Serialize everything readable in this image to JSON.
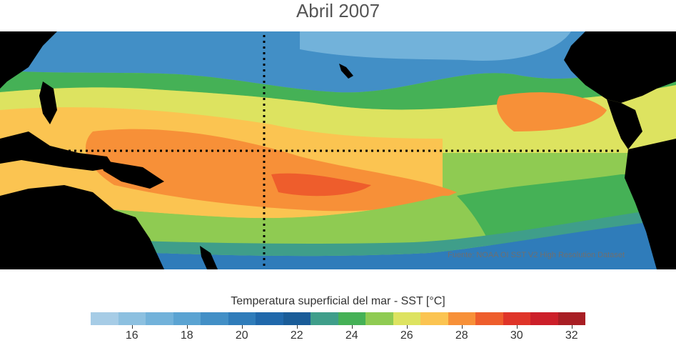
{
  "title": "Abril 2007",
  "source_text": "Fuente: NOAA OI SST V2 High Resolution Dataset",
  "colorbar": {
    "label": "Temperatura superficial del mar - SST  [°C]",
    "colors": [
      "#a6cce6",
      "#8cc0e0",
      "#72b2da",
      "#5aa3d2",
      "#428fc6",
      "#2f7cba",
      "#2068ab",
      "#1a5c98",
      "#3f9e8a",
      "#45b156",
      "#8fcb52",
      "#dde360",
      "#fbc451",
      "#f79038",
      "#ee5d2c",
      "#df3428",
      "#cc1f29",
      "#a81e24"
    ],
    "tick_labels": [
      "16",
      "18",
      "20",
      "22",
      "24",
      "26",
      "28",
      "30",
      "32"
    ],
    "tick_values": [
      16,
      18,
      20,
      22,
      24,
      26,
      28,
      30,
      32
    ],
    "range": [
      15,
      33
    ]
  }
}
